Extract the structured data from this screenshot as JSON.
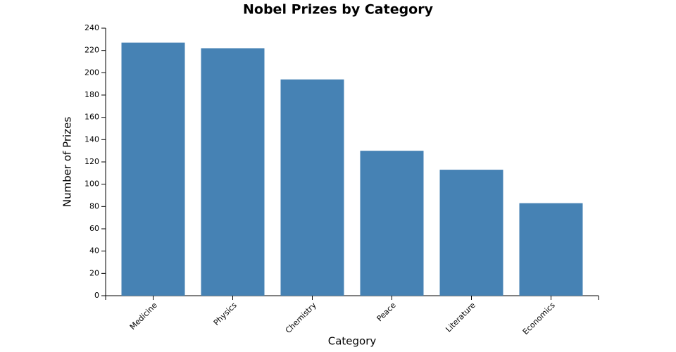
{
  "chart_data": {
    "type": "bar",
    "title": "Nobel Prizes by Category",
    "x_label": "Category",
    "y_label": "Number of Prizes",
    "categories": [
      "Medicine",
      "Physics",
      "Chemistry",
      "Peace",
      "Literature",
      "Economics"
    ],
    "values": [
      227,
      222,
      194,
      130,
      113,
      83
    ],
    "color": "#4682b4",
    "ylim": [
      0,
      240
    ],
    "yticks": [
      0,
      20,
      40,
      60,
      80,
      100,
      120,
      140,
      160,
      180,
      200,
      220,
      240
    ],
    "grid": false
  }
}
